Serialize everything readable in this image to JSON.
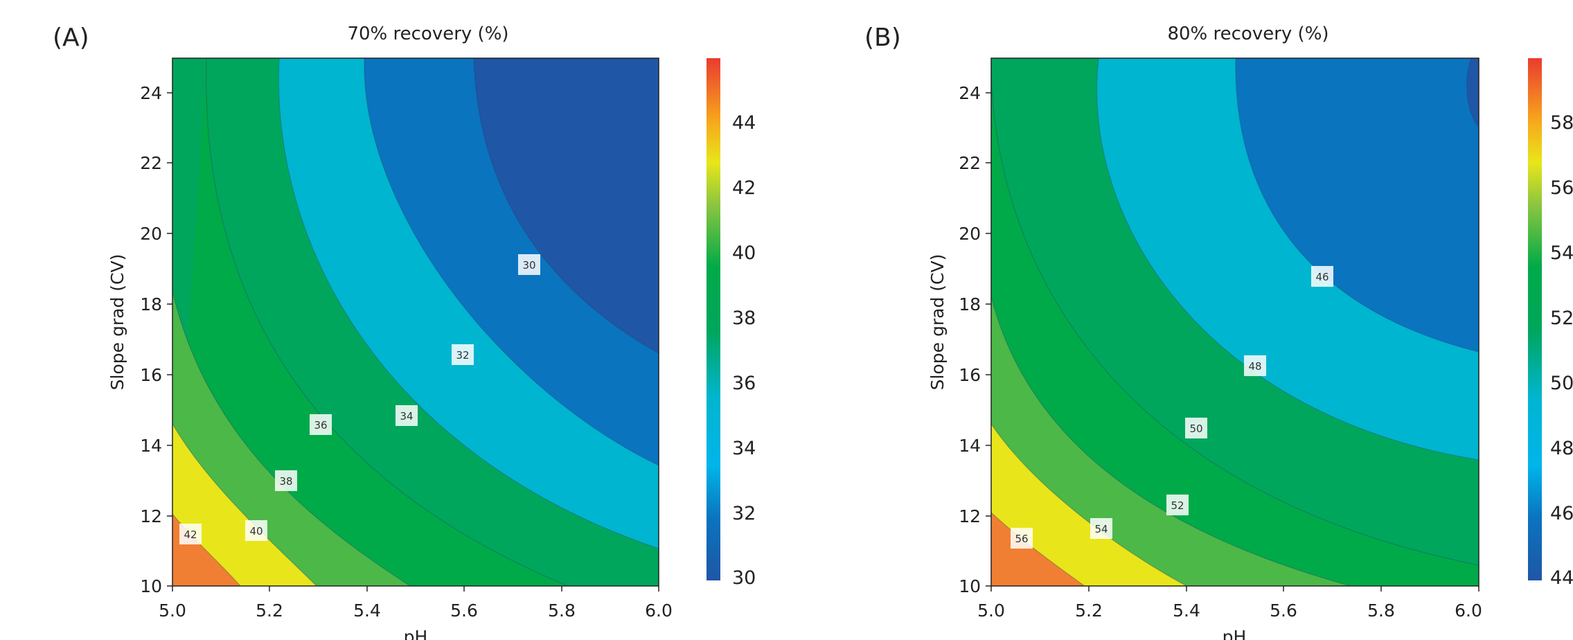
{
  "panels": [
    {
      "panel_label": "(A)",
      "title": "70% recovery (%)",
      "xlabel": "pH",
      "ylabel": "Slope grad (CV)",
      "xticks": [
        "5.0",
        "5.2",
        "5.4",
        "5.6",
        "5.8",
        "6.0"
      ],
      "yticks": [
        "10",
        "12",
        "14",
        "16",
        "18",
        "20",
        "22",
        "24"
      ],
      "colorbar_ticks": [
        "30",
        "32",
        "34",
        "36",
        "38",
        "40",
        "42",
        "44"
      ],
      "contour_labels": [
        "30",
        "32",
        "34",
        "36",
        "38",
        "40",
        "42"
      ]
    },
    {
      "panel_label": "(B)",
      "title": "80% recovery (%)",
      "xlabel": "pH",
      "ylabel": "Slope grad (CV)",
      "xticks": [
        "5.0",
        "5.2",
        "5.4",
        "5.6",
        "5.8",
        "6.0"
      ],
      "yticks": [
        "10",
        "12",
        "14",
        "16",
        "18",
        "20",
        "22",
        "24"
      ],
      "colorbar_ticks": [
        "44",
        "46",
        "48",
        "50",
        "52",
        "54",
        "56",
        "58"
      ],
      "contour_labels": [
        "46",
        "48",
        "50",
        "52",
        "54",
        "56"
      ]
    }
  ],
  "chart_data": [
    {
      "type": "contour",
      "title": "70% recovery (%)",
      "xlabel": "pH",
      "ylabel": "Slope grad (CV)",
      "xlim": [
        5.0,
        6.0
      ],
      "ylim": [
        10,
        25
      ],
      "colorbar_range": [
        30,
        46
      ],
      "colorbar_ticks": [
        30,
        32,
        34,
        36,
        38,
        40,
        42,
        44
      ],
      "colors": [
        "#1f56a6",
        "#0a74bf",
        "#00b5cf",
        "#00a65c",
        "#00aa48",
        "#4bb848",
        "#e8e61a",
        "#f07f33",
        "#ea3b30"
      ],
      "contour_levels": [
        30,
        32,
        34,
        36,
        38,
        40,
        42
      ],
      "contours": [
        {
          "level": 42,
          "points": [
            [
              5.0,
              12.0
            ],
            [
              5.14,
              10.0
            ]
          ]
        },
        {
          "level": 40,
          "points": [
            [
              5.0,
              14.7
            ],
            [
              5.16,
              12.0
            ],
            [
              5.29,
              10.0
            ]
          ]
        },
        {
          "level": 38,
          "points": [
            [
              5.0,
              18.4
            ],
            [
              5.23,
              13.0
            ],
            [
              5.48,
              10.0
            ]
          ]
        },
        {
          "level": 36,
          "points": [
            [
              5.07,
              25.0
            ],
            [
              5.31,
              14.6
            ],
            [
              5.68,
              10.6
            ],
            [
              6.0,
              10.0
            ]
          ]
        },
        {
          "level": 34,
          "points": [
            [
              5.22,
              25.0
            ],
            [
              5.48,
              14.8
            ],
            [
              6.0,
              11.2
            ]
          ]
        },
        {
          "level": 32,
          "points": [
            [
              5.4,
              25.0
            ],
            [
              5.6,
              16.6
            ],
            [
              6.0,
              13.5
            ]
          ]
        },
        {
          "level": 30,
          "points": [
            [
              5.62,
              25.0
            ],
            [
              5.73,
              19.1
            ],
            [
              6.0,
              16.5
            ]
          ]
        }
      ]
    },
    {
      "type": "contour",
      "title": "80% recovery (%)",
      "xlabel": "pH",
      "ylabel": "Slope grad (CV)",
      "xlim": [
        5.0,
        6.0
      ],
      "ylim": [
        10,
        25
      ],
      "colorbar_range": [
        44,
        60
      ],
      "colorbar_ticks": [
        44,
        46,
        48,
        50,
        52,
        54,
        56,
        58
      ],
      "colors": [
        "#1f56a6",
        "#0a74bf",
        "#00b5cf",
        "#00a65c",
        "#00aa48",
        "#4bb848",
        "#e8e61a",
        "#f07f33",
        "#ea3b30"
      ],
      "contour_levels": [
        44,
        46,
        48,
        50,
        52,
        54,
        56
      ],
      "contours": [
        {
          "level": 56,
          "points": [
            [
              5.0,
              12.1
            ],
            [
              5.19,
              10.0
            ]
          ]
        },
        {
          "level": 54,
          "points": [
            [
              5.0,
              14.7
            ],
            [
              5.22,
              11.6
            ],
            [
              5.4,
              10.0
            ]
          ]
        },
        {
          "level": 52,
          "points": [
            [
              5.0,
              18.2
            ],
            [
              5.38,
              12.3
            ],
            [
              5.74,
              10.0
            ]
          ]
        },
        {
          "level": 50,
          "points": [
            [
              5.0,
              25.0
            ],
            [
              5.42,
              14.5
            ],
            [
              6.0,
              10.6
            ]
          ]
        },
        {
          "level": 48,
          "points": [
            [
              5.22,
              25.0
            ],
            [
              5.54,
              16.3
            ],
            [
              6.0,
              13.6
            ]
          ]
        },
        {
          "level": 46,
          "points": [
            [
              5.5,
              25.0
            ],
            [
              5.68,
              18.8
            ],
            [
              6.0,
              16.6
            ]
          ]
        },
        {
          "level": 44,
          "points": [
            [
              5.99,
              25.0
            ],
            [
              5.97,
              24.1
            ],
            [
              6.0,
              22.8
            ]
          ]
        }
      ]
    }
  ]
}
